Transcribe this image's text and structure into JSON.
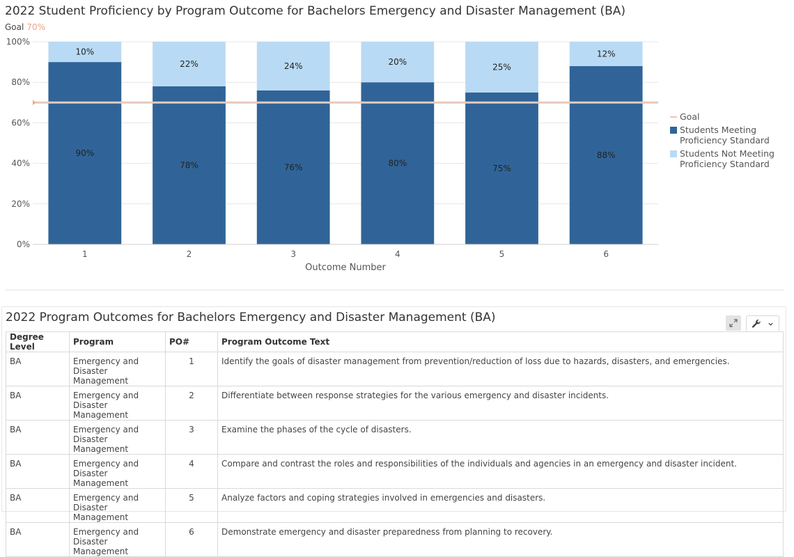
{
  "chart_title": "2022 Student Proficiency by Program Outcome for Bachelors Emergency and Disaster Management (BA)",
  "goal_caption": {
    "label": "Goal",
    "value": "70%"
  },
  "chart_data": {
    "type": "bar",
    "stacked": true,
    "categories": [
      "1",
      "2",
      "3",
      "4",
      "5",
      "6"
    ],
    "series": [
      {
        "name": "Students Meeting Proficiency Standard",
        "values": [
          90,
          78,
          76,
          80,
          75,
          88
        ],
        "color": "#306498",
        "labels": [
          "90%",
          "78%",
          "76%",
          "80%",
          "75%",
          "88%"
        ]
      },
      {
        "name": "Students Not Meeting Proficiency Standard",
        "values": [
          10,
          22,
          24,
          20,
          25,
          12
        ],
        "color": "#b9daf4",
        "labels": [
          "10%",
          "22%",
          "24%",
          "20%",
          "25%",
          "12%"
        ]
      }
    ],
    "goal": {
      "name": "Goal",
      "value": 70,
      "color": "#f5c3ae"
    },
    "xlabel": "Outcome Number",
    "ylabel": "",
    "ylim": [
      0,
      100
    ],
    "yticks": [
      "0%",
      "20%",
      "40%",
      "60%",
      "80%",
      "100%"
    ],
    "grid": true,
    "legend": "right"
  },
  "legend": [
    {
      "label_1": "Goal",
      "label_2": ""
    },
    {
      "label_1": "Students Meeting",
      "label_2": "Proficiency Standard"
    },
    {
      "label_1": "Students Not Meeting",
      "label_2": "Proficiency Standard"
    }
  ],
  "table": {
    "title": "2022 Program Outcomes for Bachelors Emergency and Disaster Management (BA)",
    "headers": [
      "Degree Level",
      "Program",
      "PO#",
      "Program Outcome Text"
    ],
    "rows": [
      {
        "degree": "BA",
        "program_1": "Emergency and",
        "program_2": "Disaster Management",
        "po": "1",
        "text": "Identify the goals of disaster management from prevention/reduction of loss due to hazards, disasters, and emergencies."
      },
      {
        "degree": "BA",
        "program_1": "Emergency and",
        "program_2": "Disaster Management",
        "po": "2",
        "text": "Differentiate between response strategies for the various emergency and disaster incidents."
      },
      {
        "degree": "BA",
        "program_1": "Emergency and",
        "program_2": "Disaster Management",
        "po": "3",
        "text": "Examine the phases of the cycle of disasters."
      },
      {
        "degree": "BA",
        "program_1": "Emergency and",
        "program_2": "Disaster Management",
        "po": "4",
        "text": "Compare and contrast the roles and responsibilities of the individuals and agencies in an emergency and disaster incident."
      },
      {
        "degree": "BA",
        "program_1": "Emergency and",
        "program_2": "Disaster Management",
        "po": "5",
        "text": "Analyze factors and coping strategies involved in emergencies and disasters."
      },
      {
        "degree": "BA",
        "program_1": "Emergency and",
        "program_2": "Disaster Management",
        "po": "6",
        "text": "Demonstrate emergency and disaster preparedness from planning to recovery."
      }
    ]
  },
  "toolbar": {
    "expand_icon": "expand-icon",
    "wrench_icon": "wrench-icon",
    "chevron_icon": "chevron-down-icon"
  }
}
